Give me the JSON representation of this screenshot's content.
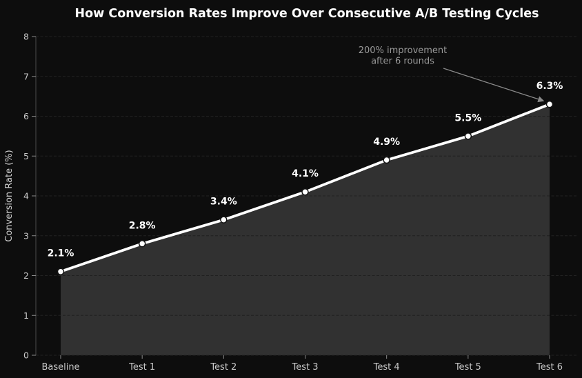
{
  "chart_data": {
    "type": "line",
    "title": "How Conversion Rates Improve Over Consecutive A/B Testing Cycles",
    "categories": [
      "Baseline",
      "Test 1",
      "Test 2",
      "Test 3",
      "Test 4",
      "Test 5",
      "Test 6"
    ],
    "series": [
      {
        "name": "Conversion Rate",
        "values": [
          2.1,
          2.8,
          3.4,
          4.1,
          4.9,
          5.5,
          6.3
        ]
      }
    ],
    "point_labels": [
      "2.1%",
      "2.8%",
      "3.4%",
      "4.1%",
      "4.9%",
      "5.5%",
      "6.3%"
    ],
    "xlabel": "",
    "ylabel": "Conversion Rate (%)",
    "ylim": [
      0,
      8
    ],
    "yticks": [
      0,
      1,
      2,
      3,
      4,
      5,
      6,
      7,
      8
    ],
    "grid": "horizontal-dashed",
    "legend": "none",
    "area_fill": true,
    "annotation": {
      "lines": [
        "200% improvement",
        "after 6 rounds"
      ],
      "points_to": "Test 6"
    },
    "colors": {
      "background": "#0d0d0d",
      "line": "#ffffff",
      "marker_fill": "#ffffff",
      "marker_edge": "#151515",
      "area_fill": "#313131",
      "grid": "#212121",
      "spine": "#4a4a4a",
      "tick_mark": "#8a8a8a",
      "tick_label": "#c9c9c9",
      "axis_label": "#cfcfcf",
      "title": "#ffffff",
      "data_label": "#ffffff",
      "annotation_text": "#9a9a9a",
      "annotation_arrow": "#8a8a8a"
    }
  }
}
